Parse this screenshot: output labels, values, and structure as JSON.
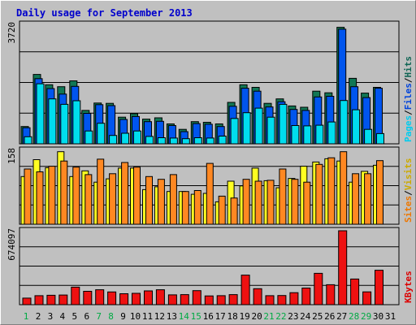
{
  "chart_data": {
    "type": "bar",
    "title": "Daily usage for September 2013",
    "categories": [
      "1",
      "2",
      "3",
      "4",
      "5",
      "6",
      "7",
      "8",
      "9",
      "10",
      "11",
      "12",
      "13",
      "14",
      "15",
      "16",
      "17",
      "18",
      "19",
      "20",
      "21",
      "22",
      "23",
      "24",
      "25",
      "26",
      "27",
      "28",
      "29",
      "30",
      "31"
    ],
    "weekend_days": [
      "1",
      "7",
      "8",
      "14",
      "15",
      "21",
      "22",
      "28",
      "29"
    ],
    "panels": [
      {
        "id": "top",
        "max_label": "3720",
        "ylim": [
          0,
          3720
        ],
        "legend": [
          {
            "text": "Hits",
            "color": "#116655"
          },
          {
            "text": "/",
            "color": "#000000"
          },
          {
            "text": "Files",
            "color": "#0044dd"
          },
          {
            "text": "/",
            "color": "#000000"
          },
          {
            "text": "Pages",
            "color": "#00ccee"
          }
        ],
        "series": [
          {
            "name": "Hits",
            "color": "#117755",
            "values": [
              540,
              2160,
              1840,
              1780,
              1960,
              1040,
              1270,
              1260,
              830,
              940,
              770,
              810,
              620,
              450,
              690,
              670,
              620,
              1290,
              1840,
              1760,
              1260,
              1400,
              1180,
              1140,
              1640,
              1590,
              3630,
              2040,
              1580,
              1760,
              0
            ]
          },
          {
            "name": "Files",
            "color": "#0055ee",
            "values": [
              500,
              2030,
              1720,
              1550,
              1790,
              950,
              1220,
              1190,
              760,
              850,
              690,
              700,
              570,
              380,
              630,
              610,
              540,
              1170,
              1730,
              1640,
              1150,
              1310,
              1070,
              1040,
              1460,
              1480,
              3570,
              1780,
              1440,
              1730,
              0
            ]
          },
          {
            "name": "Pages",
            "color": "#00ddee",
            "values": [
              220,
              1870,
              1400,
              1230,
              1340,
              400,
              640,
              260,
              330,
              400,
              230,
              190,
              180,
              160,
              190,
              180,
              240,
              790,
              970,
              1110,
              830,
              1230,
              570,
              560,
              580,
              680,
              1350,
              1060,
              450,
              320,
              0
            ]
          }
        ]
      },
      {
        "id": "middle",
        "max_label": "158",
        "ylim": [
          0,
          158
        ],
        "legend": [
          {
            "text": "Visits",
            "color": "#ccaa00"
          },
          {
            "text": "/",
            "color": "#000000"
          },
          {
            "text": "Sites",
            "color": "#ee7700"
          }
        ],
        "series": [
          {
            "name": "Visits",
            "color": "#ffff22",
            "values": [
              102,
              138,
              121,
              155,
              102,
              114,
              90,
              97,
              120,
              120,
              74,
              80,
              70,
              70,
              64,
              66,
              48,
              92,
              82,
              120,
              93,
              78,
              98,
              124,
              133,
              140,
              135,
              90,
              113,
              126,
              0
            ]
          },
          {
            "name": "Sites",
            "color": "#ff8822",
            "values": [
              118,
              112,
              124,
              135,
              122,
              106,
              139,
              108,
              132,
              122,
              102,
              96,
              106,
              70,
              72,
              130,
              60,
              56,
              96,
              92,
              94,
              118,
              96,
              90,
              128,
              142,
              155,
              108,
              108,
              136,
              0
            ]
          }
        ]
      },
      {
        "id": "bottom",
        "max_label": "674097",
        "ylim": [
          0,
          674097
        ],
        "legend": [
          {
            "text": "KBytes",
            "color": "#dd0000"
          }
        ],
        "series": [
          {
            "name": "KBytes",
            "color": "#ee1111",
            "values": [
              60000,
              82000,
              86000,
              88000,
              160000,
              122000,
              136000,
              116000,
              100000,
              104000,
              126000,
              136000,
              90000,
              92000,
              128000,
              80000,
              82000,
              92000,
              270000,
              146000,
              82000,
              84000,
              110000,
              152000,
              286000,
              182000,
              674097,
              234000,
              117000,
              314000,
              0
            ]
          }
        ]
      }
    ]
  }
}
